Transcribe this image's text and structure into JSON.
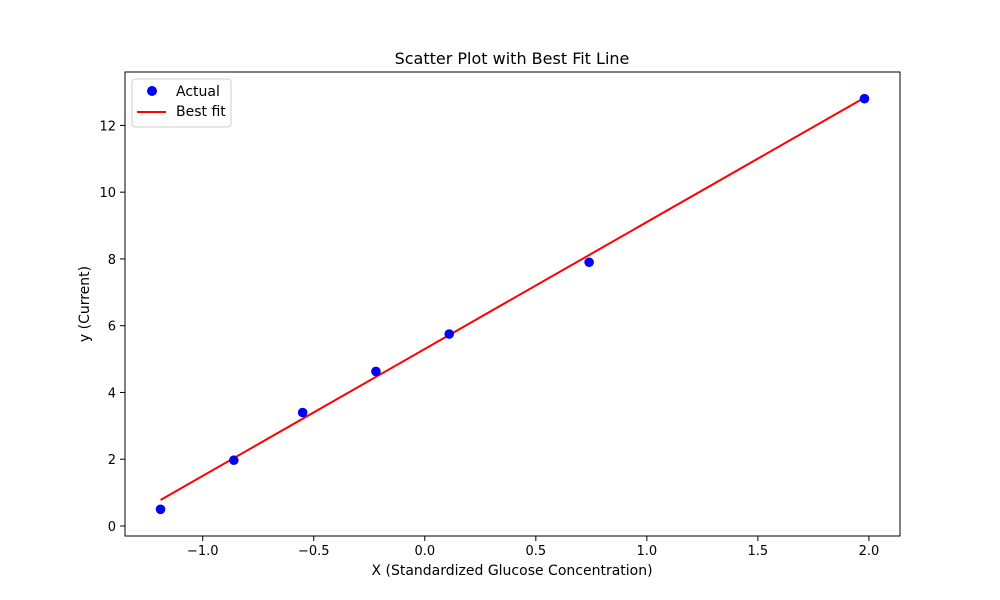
{
  "chart_data": {
    "type": "scatter",
    "title": "Scatter Plot with Best Fit Line",
    "xlabel": "X (Standardized Glucose Concentration)",
    "ylabel": "y (Current)",
    "xlim": [
      -1.35,
      2.14
    ],
    "ylim": [
      -0.3,
      13.6
    ],
    "xticks": [
      -1.0,
      -0.5,
      0.0,
      0.5,
      1.0,
      1.5,
      2.0
    ],
    "xtick_labels": [
      "−1.0",
      "−0.5",
      "0.0",
      "0.5",
      "1.0",
      "1.5",
      "2.0"
    ],
    "yticks": [
      0,
      2,
      4,
      6,
      8,
      10,
      12
    ],
    "ytick_labels": [
      "0",
      "2",
      "4",
      "6",
      "8",
      "10",
      "12"
    ],
    "grid": false,
    "legend_position": "top-left",
    "series": [
      {
        "name": "Actual",
        "kind": "scatter",
        "color": "#0000ff",
        "x": [
          -1.19,
          -0.86,
          -0.55,
          -0.22,
          0.11,
          0.74,
          1.98
        ],
        "y": [
          0.5,
          1.97,
          3.4,
          4.63,
          5.75,
          7.9,
          12.8
        ]
      },
      {
        "name": "Best fit",
        "kind": "line",
        "color": "#ff0000",
        "x": [
          -1.19,
          1.98
        ],
        "y": [
          0.78,
          12.83
        ]
      }
    ]
  }
}
